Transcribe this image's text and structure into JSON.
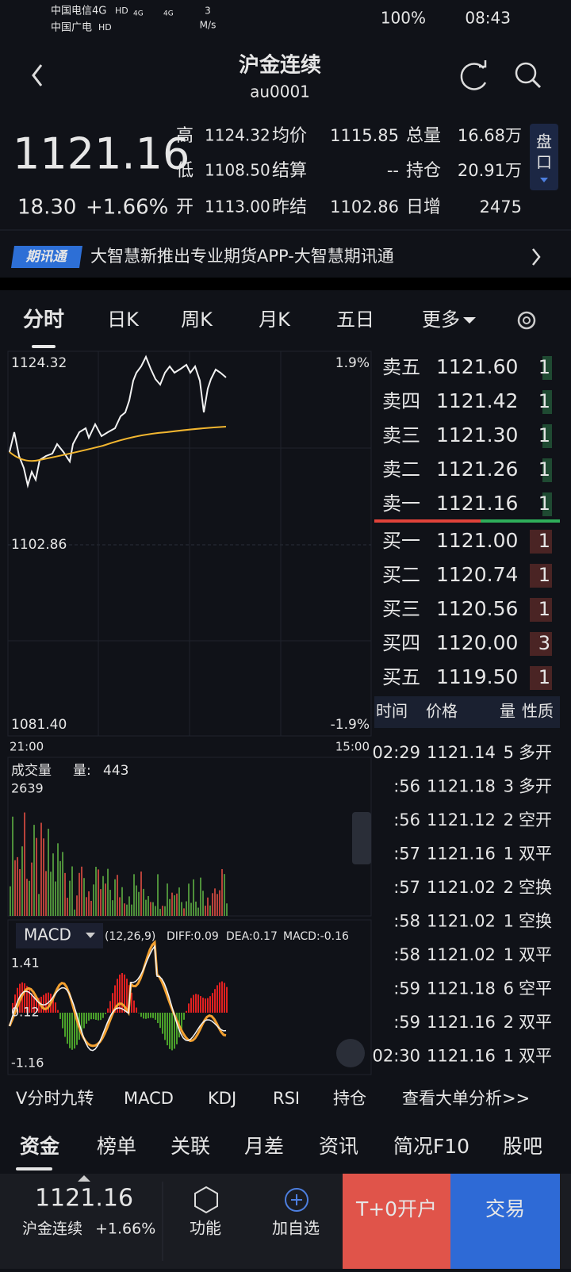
{
  "status": {
    "carrier1": "中国电信4G",
    "carrier2": "中国广电",
    "hd": "HD",
    "net1": "4G",
    "net2": "4G",
    "speed": "3",
    "speed_unit": "M/s",
    "battery": "100%",
    "time": "08:43"
  },
  "header": {
    "title": "沪金连续",
    "code": "au0001"
  },
  "quote": {
    "price": "1121.16",
    "change": "18.30",
    "percent": "+1.66%",
    "stats": [
      [
        {
          "label": "高",
          "value": "1124.32"
        },
        {
          "label": "均价",
          "value": "1115.85"
        },
        {
          "label": "总量",
          "value": "16.68万"
        }
      ],
      [
        {
          "label": "低",
          "value": "1108.50"
        },
        {
          "label": "结算",
          "value": "--"
        },
        {
          "label": "持仓",
          "value": "20.91万"
        }
      ],
      [
        {
          "label": "开",
          "value": "1113.00"
        },
        {
          "label": "昨结",
          "value": "1102.86"
        },
        {
          "label": "日增",
          "value": "2475"
        }
      ]
    ],
    "pankou": "盘口"
  },
  "banner": {
    "badge": "期讯通",
    "text": "大智慧新推出专业期货APP-大智慧期讯通"
  },
  "tabs": [
    "分时",
    "日K",
    "周K",
    "月K",
    "五日",
    "更多"
  ],
  "chart": {
    "high_price": "1124.32",
    "high_pct": "1.9%",
    "prev_settle": "1102.86",
    "low_price": "1081.40",
    "low_pct": "-1.9%",
    "time_start": "21:00",
    "time_end": "15:00",
    "volume_title": "成交量",
    "volume_label": "量:",
    "volume_value": "443",
    "volume_max": "2639",
    "macd_name": "MACD",
    "macd_params": "(12,26,9)",
    "diff": "DIFF:0.09",
    "dea": "DEA:0.17",
    "macd": "MACD:-0.16",
    "macd_high": "1.41",
    "macd_mid": "0.12",
    "macd_low": "-1.16"
  },
  "orderbook": {
    "asks": [
      {
        "label": "卖五",
        "price": "1121.60",
        "qty": "1"
      },
      {
        "label": "卖四",
        "price": "1121.42",
        "qty": "1"
      },
      {
        "label": "卖三",
        "price": "1121.30",
        "qty": "1"
      },
      {
        "label": "卖二",
        "price": "1121.26",
        "qty": "1"
      },
      {
        "label": "卖一",
        "price": "1121.16",
        "qty": "1"
      }
    ],
    "bids": [
      {
        "label": "买一",
        "price": "1121.00",
        "qty": "1"
      },
      {
        "label": "买二",
        "price": "1120.74",
        "qty": "1"
      },
      {
        "label": "买三",
        "price": "1120.56",
        "qty": "1"
      },
      {
        "label": "买四",
        "price": "1120.00",
        "qty": "3"
      },
      {
        "label": "买五",
        "price": "1119.50",
        "qty": "1"
      }
    ]
  },
  "trades": {
    "headers": [
      "时间",
      "价格",
      "量",
      "性质"
    ],
    "rows": [
      {
        "time": "02:29",
        "price": "1121.14",
        "qty": "5",
        "nature": "多开",
        "color": "#f0433a"
      },
      {
        "time": ":56",
        "price": "1121.18",
        "qty": "3",
        "nature": "多开",
        "color": "#f0433a"
      },
      {
        "time": ":56",
        "price": "1121.12",
        "qty": "2",
        "nature": "空开",
        "color": "#35b35a"
      },
      {
        "time": ":57",
        "price": "1121.16",
        "qty": "1",
        "nature": "双平",
        "color": "#f0433a"
      },
      {
        "time": ":57",
        "price": "1121.02",
        "qty": "2",
        "nature": "空换",
        "color": "#35b35a"
      },
      {
        "time": ":58",
        "price": "1121.02",
        "qty": "1",
        "nature": "空换",
        "color": "#35b35a"
      },
      {
        "time": ":58",
        "price": "1121.02",
        "qty": "1",
        "nature": "双平",
        "color": "#f0433a"
      },
      {
        "time": ":59",
        "price": "1121.18",
        "qty": "6",
        "nature": "空平",
        "color": "#f0433a"
      },
      {
        "time": ":59",
        "price": "1121.16",
        "qty": "2",
        "nature": "双平",
        "color": "#35b35a"
      },
      {
        "time": "02:30",
        "price": "1121.16",
        "qty": "1",
        "nature": "双平",
        "color": "#35b35a"
      }
    ]
  },
  "indicators": {
    "items": [
      "V分时九转",
      "MACD",
      "KDJ",
      "RSI",
      "持仓"
    ],
    "link": "查看大单分析>>"
  },
  "bottom_tabs": [
    "资金",
    "榜单",
    "关联",
    "月差",
    "资讯",
    "简况F10",
    "股吧"
  ],
  "footer": {
    "price": "1121.16",
    "name": "沪金连续",
    "percent": "+1.66%",
    "func": "功能",
    "add": "加自选",
    "open": "T+0开户",
    "trade": "交易"
  }
}
